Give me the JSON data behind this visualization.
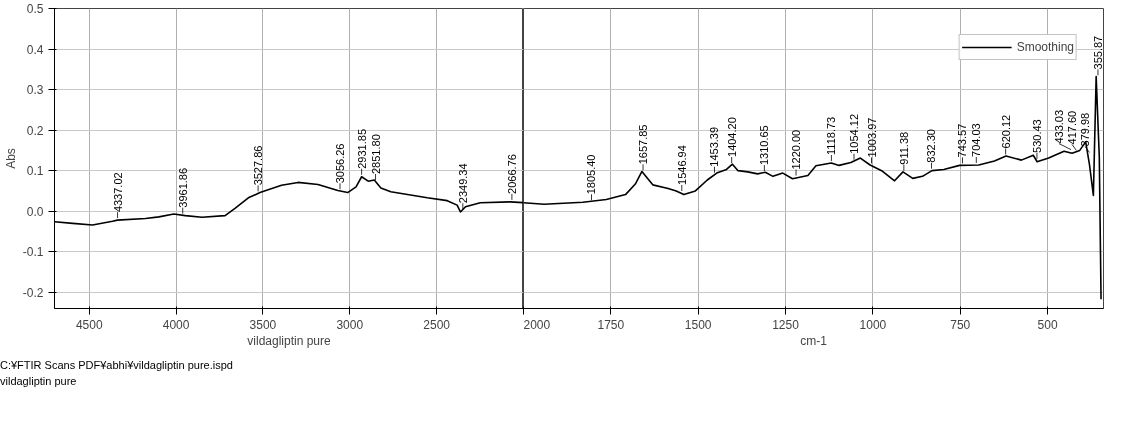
{
  "chart_data": [
    {
      "type": "line",
      "xlabel": "vildagliptin pure",
      "ylabel": "Abs",
      "xlim": [
        4700,
        2000
      ],
      "xticks": [
        4500,
        4000,
        3500,
        3000,
        2500
      ],
      "ylim": [
        -0.24,
        0.5
      ],
      "yticks": [
        -0.2,
        -0.1,
        {
          "value": 0,
          "label": "0.0"
        },
        0.1,
        0.2,
        0.3,
        0.4,
        0.5
      ],
      "grid": true,
      "legend": false,
      "tick_labels": [
        "x",
        "y"
      ],
      "series": [
        {
          "color": "#000000",
          "x": [
            4700,
            4595,
            4481,
            4366,
            4338,
            4176,
            4099,
            4013,
            3947,
            3851,
            3718,
            3661,
            3584,
            3517,
            3393,
            3298,
            3183,
            3069,
            3012,
            2964,
            2932,
            2894,
            2859,
            2821,
            2764,
            2554,
            2439,
            2382,
            2363,
            2334,
            2249,
            2077,
            2000
          ],
          "values": [
            -0.026,
            -0.03,
            -0.034,
            -0.025,
            -0.022,
            -0.018,
            -0.014,
            -0.007,
            -0.011,
            -0.015,
            -0.011,
            0.007,
            0.033,
            0.046,
            0.064,
            0.071,
            0.066,
            0.051,
            0.046,
            0.06,
            0.085,
            0.074,
            0.077,
            0.057,
            0.048,
            0.033,
            0.026,
            0.015,
            -0.002,
            0.011,
            0.021,
            0.023,
            0.021
          ]
        }
      ],
      "annotations": [
        {
          "text": "4337.02",
          "x": 4337.02,
          "y": -0.022
        },
        {
          "text": "3961.86",
          "x": 3961.86,
          "y": -0.011
        },
        {
          "text": "3527.86",
          "x": 3527.86,
          "y": 0.044
        },
        {
          "text": "3056.26",
          "x": 3056.26,
          "y": 0.049
        },
        {
          "text": "2931.85",
          "x": 2931.85,
          "y": 0.085
        },
        {
          "text": "2851.80",
          "x": 2851.8,
          "y": 0.072
        },
        {
          "text": "2349.34",
          "x": 2349.34,
          "y": 0.0
        },
        {
          "text": "2066.76",
          "x": 2066.76,
          "y": 0.023
        },
        "C:¥FTIR Scans PDF¥abhi¥vildagliptin pure.ispd",
        "vildagliptin pure"
      ]
    },
    {
      "type": "line",
      "xlabel": "cm-1",
      "xlim": [
        2000,
        340
      ],
      "xticks": [
        2000,
        1750,
        1500,
        1250,
        1000,
        750,
        500
      ],
      "ylim": [
        -0.24,
        0.5
      ],
      "yticks": [
        -0.2,
        -0.1,
        0.0,
        0.1,
        0.2,
        0.3,
        0.4,
        0.5
      ],
      "grid": true,
      "legend": "top right",
      "tick_labels": "x",
      "series": [
        {
          "name": "Smoothing",
          "color": "#000000",
          "x": [
            2000,
            1941,
            1830,
            1763,
            1708,
            1680,
            1661,
            1650,
            1630,
            1586,
            1563,
            1541,
            1508,
            1474,
            1447,
            1419,
            1402,
            1386,
            1358,
            1330,
            1308,
            1286,
            1258,
            1230,
            1186,
            1163,
            1119,
            1097,
            1063,
            1036,
            1008,
            975,
            938,
            914,
            886,
            858,
            831,
            797,
            752,
            697,
            652,
            619,
            575,
            541,
            530,
            497,
            453,
            430,
            408,
            391,
            380,
            369,
            361,
            352,
            347
          ],
          "values": [
            0.021,
            0.017,
            0.022,
            0.029,
            0.041,
            0.067,
            0.098,
            0.086,
            0.065,
            0.056,
            0.05,
            0.041,
            0.05,
            0.077,
            0.094,
            0.103,
            0.116,
            0.1,
            0.097,
            0.092,
            0.096,
            0.086,
            0.094,
            0.08,
            0.088,
            0.112,
            0.119,
            0.113,
            0.12,
            0.131,
            0.114,
            0.1,
            0.075,
            0.097,
            0.081,
            0.086,
            0.1,
            0.103,
            0.113,
            0.114,
            0.124,
            0.136,
            0.126,
            0.138,
            0.122,
            0.131,
            0.148,
            0.143,
            0.15,
            0.171,
            0.114,
            0.039,
            0.332,
            0.133,
            -0.217
          ]
        }
      ],
      "annotations": [
        {
          "text": "1805.40",
          "x": 1805.4,
          "y": 0.022
        },
        {
          "text": "1657.85",
          "x": 1657.85,
          "y": 0.096
        },
        {
          "text": "1546.94",
          "x": 1546.94,
          "y": 0.045
        },
        {
          "text": "1453.39",
          "x": 1453.39,
          "y": 0.09
        },
        {
          "text": "1404.20",
          "x": 1404.2,
          "y": 0.114
        },
        {
          "text": "1310.65",
          "x": 1310.65,
          "y": 0.094
        },
        {
          "text": "1220.00",
          "x": 1220.0,
          "y": 0.083
        },
        {
          "text": "1118.73",
          "x": 1118.73,
          "y": 0.119
        },
        {
          "text": "1054.12",
          "x": 1054.12,
          "y": 0.122
        },
        {
          "text": "1003.97",
          "x": 1003.97,
          "y": 0.113
        },
        {
          "text": "911.38",
          "x": 911.38,
          "y": 0.095
        },
        {
          "text": "832.30",
          "x": 832.3,
          "y": 0.1
        },
        {
          "text": "743.57",
          "x": 743.57,
          "y": 0.113
        },
        {
          "text": "704.03",
          "x": 704.03,
          "y": 0.114
        },
        {
          "text": "620.12",
          "x": 620.12,
          "y": 0.135
        },
        {
          "text": "530.43",
          "x": 530.43,
          "y": 0.124
        },
        {
          "text": "433.03",
          "x": 433.03,
          "y": 0.147
        },
        {
          "text": "417.60",
          "x": 417.6,
          "y": 0.145
        },
        {
          "text": "379.98",
          "x": 379.98,
          "y": 0.14
        },
        {
          "text": "355.87",
          "x": 355.87,
          "y": 0.33
        }
      ]
    }
  ]
}
